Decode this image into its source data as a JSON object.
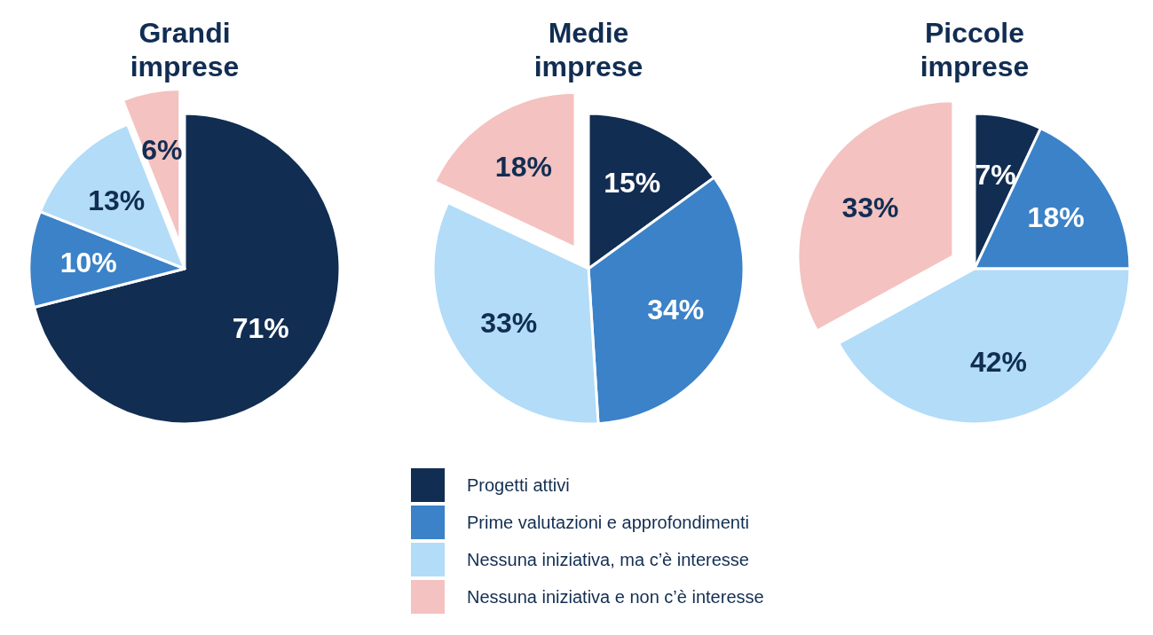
{
  "chart_data": [
    {
      "type": "pie",
      "title": "Grandi imprese",
      "categories": [
        "Progetti attivi",
        "Prime valutazioni e approfondimenti",
        "Nessuna iniziativa, ma c’è interesse",
        "Nessuna iniziativa e non c’è interesse"
      ],
      "values": [
        71,
        10,
        13,
        6
      ],
      "value_labels": [
        "71%",
        "10%",
        "13%",
        "6%"
      ],
      "colors": [
        "#112d52",
        "#3b82c8",
        "#b2dcf8",
        "#f4c2c0"
      ],
      "legend": "bottom"
    },
    {
      "type": "pie",
      "title": "Medie imprese",
      "categories": [
        null,
        null,
        null,
        null
      ],
      "values": [
        15,
        34,
        33,
        18
      ],
      "value_labels": [
        "15%",
        "34%",
        "33%",
        "18%"
      ],
      "colors": [
        "#112d52",
        "#3b82c8",
        "#b2dcf8",
        "#f4c2c0"
      ]
    },
    {
      "type": "pie",
      "title": "Piccole imprese",
      "categories": [
        null,
        null,
        null,
        null
      ],
      "values": [
        7,
        18,
        42,
        33
      ],
      "value_labels": [
        "7%",
        "18%",
        "42%",
        "33%"
      ],
      "colors": [
        "#112d52",
        "#3b82c8",
        "#b2dcf8",
        "#f4c2c0"
      ]
    }
  ]
}
